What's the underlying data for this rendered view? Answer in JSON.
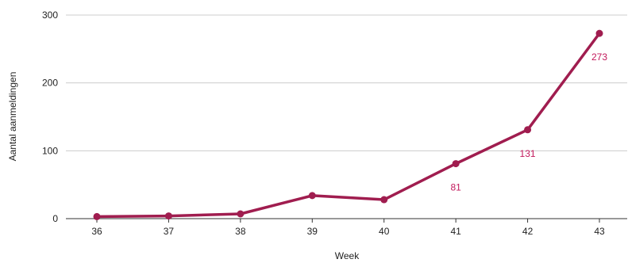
{
  "chart_data": {
    "type": "line",
    "x": [
      36,
      37,
      38,
      39,
      40,
      41,
      42,
      43
    ],
    "series": [
      {
        "values": [
          3,
          4,
          7,
          34,
          28,
          81,
          131,
          273
        ]
      }
    ],
    "data_labels": [
      {
        "x": 41,
        "text": "81"
      },
      {
        "x": 42,
        "text": "131"
      },
      {
        "x": 43,
        "text": "273"
      }
    ],
    "xlabel": "Week",
    "ylabel": "Aantal aanmeldingen",
    "yticks": [
      0,
      100,
      200,
      300
    ],
    "ylim": [
      0,
      300
    ],
    "grid": true,
    "line_color": "#a01d4f",
    "label_color": "#c2185b",
    "grid_color": "#cccccc"
  }
}
